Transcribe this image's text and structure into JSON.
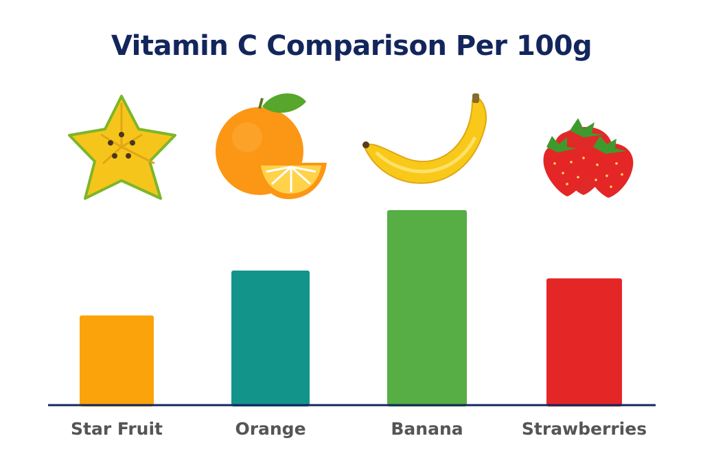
{
  "title": "Vitamin C Comparison Per 100g",
  "chart_data": {
    "type": "bar",
    "title": "Vitamin C Comparison Per 100g",
    "categories": [
      "Star Fruit",
      "Orange",
      "Banana",
      "Strawberries"
    ],
    "values": [
      0.46,
      0.69,
      1.0,
      0.65
    ],
    "value_scale": "relative (no axis or values printed)",
    "colors": [
      "#fba30b",
      "#13948a",
      "#56ae45",
      "#e42626"
    ],
    "icons": [
      "star-fruit-icon",
      "orange-icon",
      "banana-icon",
      "strawberries-icon"
    ],
    "xlabel": "",
    "ylabel": "",
    "grid": false,
    "legend": "none"
  }
}
